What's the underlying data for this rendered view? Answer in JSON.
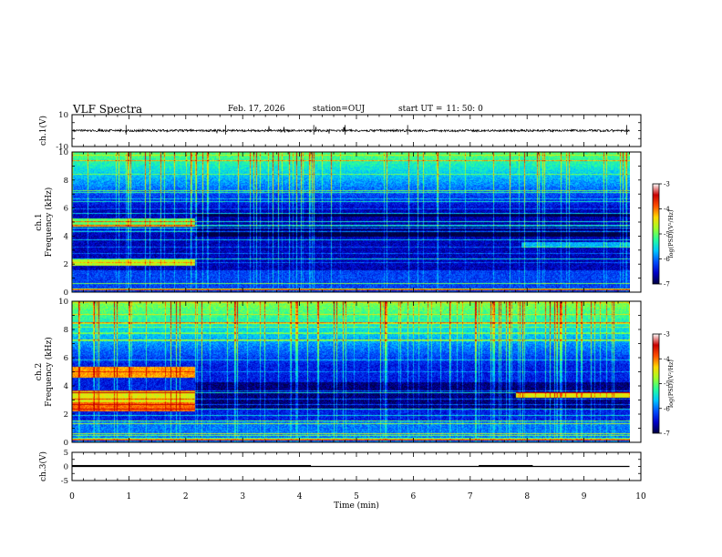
{
  "header": {
    "title": "VLF Spectra",
    "date": "Feb. 17, 2026",
    "station": "station=OUJ",
    "start_label": "start  UT  =",
    "start_time": "11: 50: 0"
  },
  "colors": {
    "colormap": [
      "#000040",
      "#0000c8",
      "#0050ff",
      "#00c8ff",
      "#28ff9a",
      "#a0ff28",
      "#ffd800",
      "#ff5000",
      "#c80000",
      "#ffffff"
    ],
    "trace": "#000000"
  },
  "chart_data": [
    {
      "type": "line",
      "name": "ch1-waveform",
      "ylabel": "ch.1(V)",
      "ylim": [
        -10,
        10
      ],
      "yticks": [
        "10",
        "-10"
      ],
      "x_range": [
        0,
        10
      ],
      "signal": "noise around 0 V with amplitude about 0.7 V and sparse spikes up to about 3 V, recorded to 9.8 min"
    },
    {
      "type": "heatmap",
      "name": "ch1-spectrogram",
      "ylabel": "ch.1\nFrequency (kHz)",
      "ylim": [
        0,
        10
      ],
      "yticks": [
        "0",
        "2",
        "4",
        "6",
        "8",
        "10"
      ],
      "x_range": [
        0,
        9.8
      ],
      "colorbar": {
        "label": "log(PSD)(V²/Hz)",
        "range": [
          -7,
          -3
        ],
        "ticks": [
          "-3",
          "-4",
          "-5",
          "-6",
          "-7"
        ]
      },
      "regions": [
        {
          "x": [
            0,
            2.15
          ],
          "f": [
            1.9,
            2.4
          ],
          "level": -4.4
        },
        {
          "x": [
            0,
            2.15
          ],
          "f": [
            4.7,
            5.3
          ],
          "level": -4.8
        },
        {
          "x": [
            2.15,
            9.8
          ],
          "f": [
            4.7,
            5.4
          ],
          "level": -6.6
        },
        {
          "x": [
            7.9,
            9.8
          ],
          "f": [
            3.2,
            3.6
          ],
          "level": -5.6
        }
      ]
    },
    {
      "type": "heatmap",
      "name": "ch2-spectrogram",
      "ylabel": "ch.2\nFrequency (kHz)",
      "ylim": [
        0,
        10
      ],
      "yticks": [
        "0",
        "2",
        "4",
        "6",
        "8",
        "10"
      ],
      "x_range": [
        0,
        9.8
      ],
      "colorbar": {
        "label": "log(PSD)(V²/Hz)",
        "range": [
          -7,
          -3
        ],
        "ticks": [
          "-3",
          "-4",
          "-5",
          "-6",
          "-7"
        ]
      },
      "regions": [
        {
          "x": [
            0,
            2.15
          ],
          "f": [
            2.2,
            2.9
          ],
          "level": -3.6
        },
        {
          "x": [
            0,
            2.15
          ],
          "f": [
            4.6,
            5.4
          ],
          "level": -3.8
        },
        {
          "x": [
            0,
            2.15
          ],
          "f": [
            2.9,
            3.7
          ],
          "level": -4.2
        },
        {
          "x": [
            7.8,
            9.8
          ],
          "f": [
            3.2,
            3.6
          ],
          "level": -4.2
        }
      ]
    },
    {
      "type": "line",
      "name": "ch3-signal",
      "ylabel": "ch.3(V)",
      "ylim": [
        -5,
        5
      ],
      "yticks": [
        "5",
        "0",
        "-5"
      ],
      "x_range": [
        0,
        10
      ],
      "baseline": 0,
      "high_segments": [
        {
          "x": [
            0,
            4.2
          ],
          "y": 0.5
        },
        {
          "x": [
            7.15,
            8.1
          ],
          "y": 0.5
        }
      ]
    }
  ],
  "xaxis": {
    "label": "Time  (min)",
    "range": [
      0,
      10
    ],
    "ticks": [
      "0",
      "1",
      "2",
      "3",
      "4",
      "5",
      "6",
      "7",
      "8",
      "9",
      "10"
    ]
  }
}
